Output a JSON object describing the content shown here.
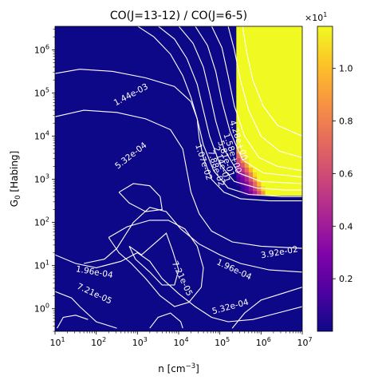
{
  "chart_data": {
    "type": "heatmap",
    "title": "CO(J=13-12) / CO(J=6-5)",
    "xlabel": "n [cm$^{-3}$]",
    "ylabel": "$G_0$ [Habing]",
    "x_scale": "log",
    "y_scale": "log",
    "xlim": [
      10,
      10000000
    ],
    "ylim": [
      0.3,
      3500000
    ],
    "x_ticks": [
      {
        "value": 10,
        "base": "10",
        "exp": "1"
      },
      {
        "value": 100,
        "base": "10",
        "exp": "2"
      },
      {
        "value": 1000,
        "base": "10",
        "exp": "3"
      },
      {
        "value": 10000,
        "base": "10",
        "exp": "4"
      },
      {
        "value": 100000,
        "base": "10",
        "exp": "5"
      },
      {
        "value": 1000000,
        "base": "10",
        "exp": "6"
      },
      {
        "value": 10000000,
        "base": "10",
        "exp": "7"
      }
    ],
    "y_ticks": [
      {
        "value": 1,
        "base": "10",
        "exp": "0"
      },
      {
        "value": 10,
        "base": "10",
        "exp": "1"
      },
      {
        "value": 100,
        "base": "10",
        "exp": "2"
      },
      {
        "value": 1000,
        "base": "10",
        "exp": "3"
      },
      {
        "value": 10000,
        "base": "10",
        "exp": "4"
      },
      {
        "value": 100000,
        "base": "10",
        "exp": "5"
      },
      {
        "value": 1000000,
        "base": "10",
        "exp": "6"
      }
    ],
    "colorbar": {
      "colormap": "plasma",
      "range": [
        0.0,
        1.16
      ],
      "ticks": [
        0.2,
        0.4,
        0.6,
        0.8,
        1.0
      ],
      "tick_labels": [
        "0.2",
        "0.4",
        "0.6",
        "0.8",
        "1.0"
      ],
      "multiplier_base": "×10",
      "multiplier_exp": "1"
    },
    "contour_color": "#ffffff",
    "contour_labels": [
      {
        "text": "1.44e-03",
        "n": 700,
        "g0": 90000,
        "angle": -28
      },
      {
        "text": "5.32e-04",
        "n": 700,
        "g0": 3500,
        "angle": -38
      },
      {
        "text": "1.96e-04",
        "n": 90,
        "g0": 7,
        "angle": 10
      },
      {
        "text": "7.21e-05",
        "n": 90,
        "g0": 2.2,
        "angle": 25
      },
      {
        "text": "7.21e-05",
        "n": 12000,
        "g0": 5,
        "angle": 65
      },
      {
        "text": "1.96e-04",
        "n": 220000,
        "g0": 8,
        "angle": 25
      },
      {
        "text": "5.32e-04",
        "n": 180000,
        "g0": 1.1,
        "angle": -15
      },
      {
        "text": "3.92e-02",
        "n": 2800000,
        "g0": 20,
        "angle": -10
      },
      {
        "text": "4.28e+00",
        "n": 280000,
        "g0": 8000,
        "angle": 72
      },
      {
        "text": "1.58e+00",
        "n": 200000,
        "g0": 4000,
        "angle": 72
      },
      {
        "text": "5.81e-01",
        "n": 140000,
        "g0": 3000,
        "angle": 72
      },
      {
        "text": "2.14e-01",
        "n": 110000,
        "g0": 2200,
        "angle": 72
      },
      {
        "text": "7.88e-02",
        "n": 80000,
        "g0": 1800,
        "angle": 72
      },
      {
        "text": "1.07e-02",
        "n": 40000,
        "g0": 2500,
        "angle": 72
      }
    ]
  }
}
